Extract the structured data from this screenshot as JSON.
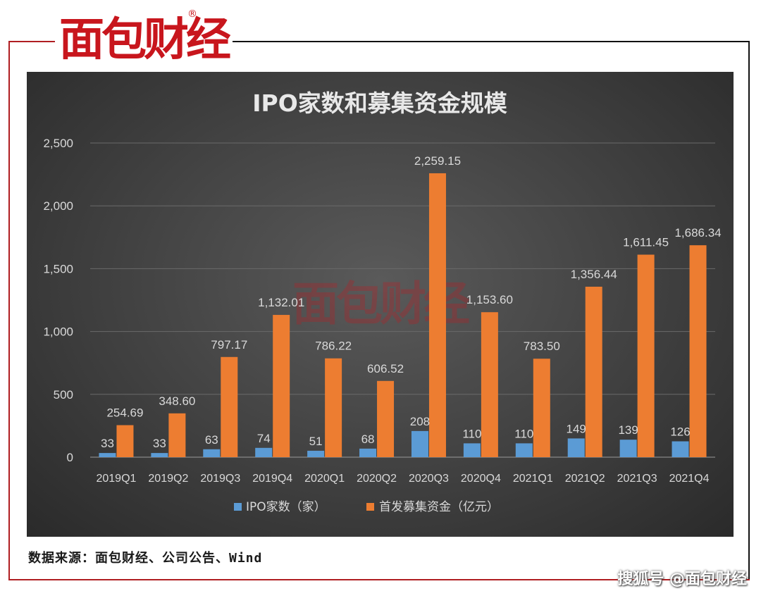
{
  "logo": {
    "text": "面包财经",
    "registered_mark": "®"
  },
  "source_note": "数据来源：面包财经、公司公告、Wind",
  "watermark_bottom": "搜狐号 @面包财经",
  "watermark_center": "面包财经",
  "colors": {
    "ipo_count": "#5b9bd5",
    "funds_raised": "#ed7d31",
    "background": "#404040",
    "text": "#d9d9d9"
  },
  "chart_data": {
    "type": "bar",
    "title": "IPO家数和募集资金规模",
    "categories": [
      "2019Q1",
      "2019Q2",
      "2019Q3",
      "2019Q4",
      "2020Q1",
      "2020Q2",
      "2020Q3",
      "2020Q4",
      "2021Q1",
      "2021Q2",
      "2021Q3",
      "2021Q4"
    ],
    "series": [
      {
        "name": "IPO家数（家）",
        "values": [
          33,
          33,
          63,
          74,
          51,
          68,
          208,
          110,
          110,
          149,
          139,
          126
        ],
        "labels": [
          "33",
          "33",
          "63",
          "74",
          "51",
          "68",
          "208",
          "110",
          "110",
          "149",
          "139",
          "126"
        ]
      },
      {
        "name": "首发募集资金（亿元）",
        "values": [
          254.69,
          348.6,
          797.17,
          1132.01,
          786.22,
          606.52,
          2259.15,
          1153.6,
          783.5,
          1356.44,
          1611.45,
          1686.34
        ],
        "labels": [
          "254.69",
          "348.60",
          "797.17",
          "1,132.01",
          "786.22",
          "606.52",
          "2,259.15",
          "1,153.60",
          "783.50",
          "1,356.44",
          "1,611.45",
          "1,686.34"
        ]
      }
    ],
    "ylim": [
      0,
      2500
    ],
    "yticks": [
      "0",
      "500",
      "1,000",
      "1,500",
      "2,000",
      "2,500"
    ],
    "ytick_values": [
      0,
      500,
      1000,
      1500,
      2000,
      2500
    ],
    "grid": true,
    "legend": "bottom"
  }
}
